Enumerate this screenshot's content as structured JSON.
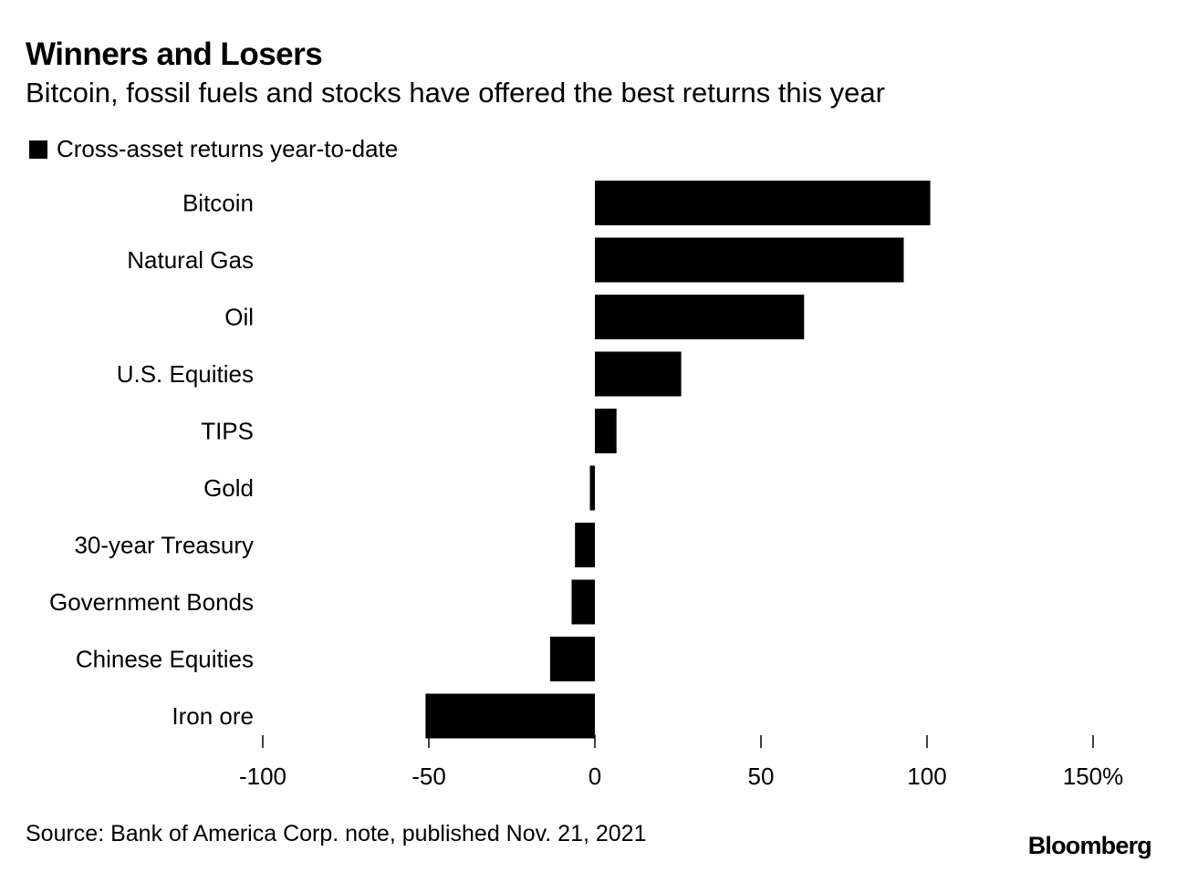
{
  "header": {
    "title": "Winners and Losers",
    "subtitle": "Bitcoin, fossil fuels and stocks have offered the best returns this year"
  },
  "legend": {
    "label": "Cross-asset returns year-to-date",
    "color": "#000000"
  },
  "footer": {
    "source": "Source: Bank of America Corp. note, published Nov. 21, 2021",
    "brand": "Bloomberg"
  },
  "chart_data": {
    "type": "bar",
    "orientation": "horizontal",
    "title": "Winners and Losers",
    "subtitle": "Bitcoin, fossil fuels and stocks have offered the best returns this year",
    "categories": [
      "Bitcoin",
      "Natural Gas",
      "Oil",
      "U.S. Equities",
      "TIPS",
      "Gold",
      "30-year Treasury",
      "Government Bonds",
      "Chinese Equities",
      "Iron ore"
    ],
    "series": [
      {
        "name": "Cross-asset returns year-to-date",
        "values": [
          101,
          93,
          63,
          26,
          6.5,
          -1.5,
          -6,
          -7,
          -13.5,
          -51
        ]
      }
    ],
    "xlim": [
      -100,
      150
    ],
    "xticks": [
      -100,
      -50,
      0,
      50,
      100,
      150
    ],
    "xtick_labels": [
      "-100",
      "-50",
      "0",
      "50",
      "100",
      "150%"
    ],
    "xlabel": "",
    "ylabel": "",
    "bar_color": "#000000",
    "grid": false,
    "legend_position": "top-left"
  }
}
